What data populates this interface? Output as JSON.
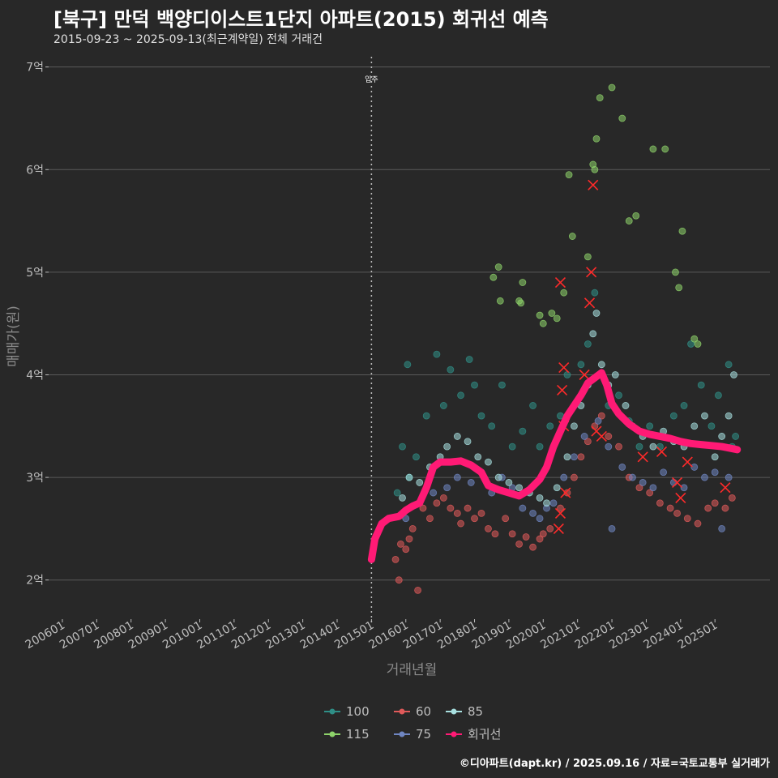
{
  "header": {
    "title": "[북구] 만덕 백양디이스트1단지 아파트(2015) 회귀선 예측",
    "subtitle": "2015-09-23 ~ 2025-09-13(최근계약일) 전체 거래건"
  },
  "caption": "©디아파트(dapt.kr) / 2025.09.16 / 자료=국토교통부 실거래가",
  "colors": {
    "background": "#282828",
    "grid": "#5a5a5a",
    "regression": "#ff1a75",
    "s100": "#2f8f87",
    "s115": "#8ed36a",
    "s60": "#e05a5a",
    "s75": "#6f86c2",
    "s85": "#a8e0e0"
  },
  "chart_data": {
    "type": "scatter",
    "title": "[북구] 만덕 백양디이스트1단지 아파트(2015) 회귀선 예측",
    "xlabel": "거래년월",
    "ylabel": "매매가(원)",
    "xlim": [
      2005.6,
      2026.6
    ],
    "ylim": [
      1.65,
      7.1
    ],
    "y_unit": "억",
    "y_ticks": [
      2,
      3,
      4,
      5,
      6,
      7
    ],
    "y_tick_labels": [
      "2억",
      "3억",
      "4억",
      "5억",
      "6억",
      "7억"
    ],
    "x_ticks": [
      2006,
      2007,
      2008,
      2009,
      2010,
      2011,
      2012,
      2013,
      2014,
      2015,
      2016,
      2017,
      2018,
      2019,
      2020,
      2021,
      2022,
      2023,
      2024,
      2025
    ],
    "x_tick_labels": [
      "200601",
      "200701",
      "200801",
      "200901",
      "201001",
      "201101",
      "201201",
      "201301",
      "201401",
      "201501",
      "201601",
      "201701",
      "201801",
      "201901",
      "202001",
      "202101",
      "202201",
      "202301",
      "202401",
      "202501"
    ],
    "move_in": {
      "x": 2015.0,
      "label": "입주"
    },
    "legend_position": "bottom",
    "legend": [
      "100",
      "60",
      "85",
      "115",
      "75",
      "회귀선"
    ],
    "series": [
      {
        "name": "100",
        "color_key": "s100",
        "points": [
          [
            2015.75,
            2.85
          ],
          [
            2015.9,
            3.3
          ],
          [
            2016.05,
            4.1
          ],
          [
            2016.1,
            3.0
          ],
          [
            2016.3,
            3.2
          ],
          [
            2016.6,
            3.6
          ],
          [
            2016.9,
            4.2
          ],
          [
            2017.1,
            3.7
          ],
          [
            2017.3,
            4.05
          ],
          [
            2017.6,
            3.8
          ],
          [
            2017.85,
            4.15
          ],
          [
            2018.0,
            3.9
          ],
          [
            2018.2,
            3.6
          ],
          [
            2018.5,
            3.5
          ],
          [
            2018.8,
            3.9
          ],
          [
            2019.1,
            3.3
          ],
          [
            2019.4,
            3.45
          ],
          [
            2019.7,
            3.7
          ],
          [
            2019.9,
            3.3
          ],
          [
            2020.2,
            3.5
          ],
          [
            2020.5,
            3.6
          ],
          [
            2020.7,
            4.0
          ],
          [
            2020.9,
            3.7
          ],
          [
            2021.1,
            4.1
          ],
          [
            2021.3,
            4.3
          ],
          [
            2021.5,
            4.8
          ],
          [
            2021.7,
            4.0
          ],
          [
            2021.9,
            3.7
          ],
          [
            2022.2,
            3.8
          ],
          [
            2022.5,
            3.55
          ],
          [
            2022.8,
            3.3
          ],
          [
            2023.1,
            3.5
          ],
          [
            2023.4,
            3.3
          ],
          [
            2023.8,
            3.6
          ],
          [
            2024.1,
            3.7
          ],
          [
            2024.3,
            4.3
          ],
          [
            2024.6,
            3.9
          ],
          [
            2024.9,
            3.5
          ],
          [
            2025.1,
            3.8
          ],
          [
            2025.4,
            4.1
          ],
          [
            2025.5,
            3.3
          ],
          [
            2025.6,
            3.4
          ]
        ]
      },
      {
        "name": "115",
        "color_key": "s115",
        "points": [
          [
            2018.55,
            4.95
          ],
          [
            2018.7,
            5.05
          ],
          [
            2018.75,
            4.72
          ],
          [
            2019.3,
            4.72
          ],
          [
            2019.35,
            4.7
          ],
          [
            2019.4,
            4.9
          ],
          [
            2019.9,
            4.58
          ],
          [
            2020.0,
            4.5
          ],
          [
            2020.25,
            4.6
          ],
          [
            2020.4,
            4.55
          ],
          [
            2020.6,
            4.8
          ],
          [
            2020.75,
            5.95
          ],
          [
            2020.85,
            5.35
          ],
          [
            2021.3,
            5.15
          ],
          [
            2021.45,
            6.05
          ],
          [
            2021.5,
            6.0
          ],
          [
            2021.55,
            6.3
          ],
          [
            2021.65,
            6.7
          ],
          [
            2022.0,
            6.8
          ],
          [
            2022.3,
            6.5
          ],
          [
            2022.5,
            5.5
          ],
          [
            2022.7,
            5.55
          ],
          [
            2023.2,
            6.2
          ],
          [
            2023.55,
            6.2
          ],
          [
            2023.85,
            5.0
          ],
          [
            2023.95,
            4.85
          ],
          [
            2024.05,
            5.4
          ],
          [
            2024.4,
            4.35
          ],
          [
            2024.5,
            4.3
          ]
        ]
      },
      {
        "name": "60",
        "color_key": "s60",
        "points": [
          [
            2015.7,
            2.2
          ],
          [
            2015.8,
            2.0
          ],
          [
            2015.85,
            2.35
          ],
          [
            2016.0,
            2.3
          ],
          [
            2016.1,
            2.4
          ],
          [
            2016.2,
            2.5
          ],
          [
            2016.35,
            1.9
          ],
          [
            2016.5,
            2.7
          ],
          [
            2016.7,
            2.6
          ],
          [
            2016.9,
            2.75
          ],
          [
            2017.1,
            2.8
          ],
          [
            2017.3,
            2.7
          ],
          [
            2017.5,
            2.65
          ],
          [
            2017.6,
            2.55
          ],
          [
            2017.8,
            2.7
          ],
          [
            2018.0,
            2.6
          ],
          [
            2018.2,
            2.65
          ],
          [
            2018.4,
            2.5
          ],
          [
            2018.6,
            2.45
          ],
          [
            2018.9,
            2.6
          ],
          [
            2019.1,
            2.45
          ],
          [
            2019.3,
            2.35
          ],
          [
            2019.5,
            2.42
          ],
          [
            2019.7,
            2.32
          ],
          [
            2019.9,
            2.4
          ],
          [
            2020.0,
            2.45
          ],
          [
            2020.2,
            2.5
          ],
          [
            2020.5,
            2.7
          ],
          [
            2020.7,
            2.85
          ],
          [
            2020.9,
            3.0
          ],
          [
            2021.1,
            3.2
          ],
          [
            2021.3,
            3.35
          ],
          [
            2021.5,
            3.5
          ],
          [
            2021.7,
            3.6
          ],
          [
            2021.9,
            3.4
          ],
          [
            2022.2,
            3.3
          ],
          [
            2022.5,
            3.0
          ],
          [
            2022.8,
            2.9
          ],
          [
            2023.1,
            2.85
          ],
          [
            2023.4,
            2.75
          ],
          [
            2023.7,
            2.7
          ],
          [
            2023.9,
            2.65
          ],
          [
            2024.2,
            2.6
          ],
          [
            2024.5,
            2.55
          ],
          [
            2024.8,
            2.7
          ],
          [
            2025.0,
            2.75
          ],
          [
            2025.3,
            2.7
          ],
          [
            2025.5,
            2.8
          ]
        ]
      },
      {
        "name": "75",
        "color_key": "s75",
        "points": [
          [
            2016.0,
            2.6
          ],
          [
            2016.4,
            2.75
          ],
          [
            2016.8,
            2.85
          ],
          [
            2017.2,
            2.9
          ],
          [
            2017.5,
            3.0
          ],
          [
            2017.9,
            2.95
          ],
          [
            2018.2,
            3.05
          ],
          [
            2018.5,
            2.85
          ],
          [
            2018.8,
            3.0
          ],
          [
            2019.1,
            2.9
          ],
          [
            2019.4,
            2.7
          ],
          [
            2019.7,
            2.65
          ],
          [
            2019.9,
            2.6
          ],
          [
            2020.1,
            2.7
          ],
          [
            2020.3,
            2.75
          ],
          [
            2020.6,
            3.0
          ],
          [
            2020.9,
            3.2
          ],
          [
            2021.2,
            3.4
          ],
          [
            2021.6,
            3.55
          ],
          [
            2021.9,
            3.3
          ],
          [
            2022.0,
            2.5
          ],
          [
            2022.3,
            3.1
          ],
          [
            2022.6,
            3.0
          ],
          [
            2022.9,
            2.95
          ],
          [
            2023.2,
            2.9
          ],
          [
            2023.5,
            3.05
          ],
          [
            2023.8,
            2.95
          ],
          [
            2024.1,
            2.9
          ],
          [
            2024.4,
            3.1
          ],
          [
            2024.7,
            3.0
          ],
          [
            2025.0,
            3.05
          ],
          [
            2025.2,
            2.5
          ],
          [
            2025.4,
            3.0
          ]
        ]
      },
      {
        "name": "85",
        "color_key": "s85",
        "points": [
          [
            2015.9,
            2.8
          ],
          [
            2016.1,
            3.0
          ],
          [
            2016.4,
            2.95
          ],
          [
            2016.7,
            3.1
          ],
          [
            2017.0,
            3.2
          ],
          [
            2017.2,
            3.3
          ],
          [
            2017.5,
            3.4
          ],
          [
            2017.8,
            3.35
          ],
          [
            2018.1,
            3.2
          ],
          [
            2018.4,
            3.15
          ],
          [
            2018.7,
            3.0
          ],
          [
            2019.0,
            2.95
          ],
          [
            2019.3,
            2.9
          ],
          [
            2019.6,
            2.85
          ],
          [
            2019.9,
            2.8
          ],
          [
            2020.1,
            2.75
          ],
          [
            2020.4,
            2.9
          ],
          [
            2020.7,
            3.2
          ],
          [
            2020.9,
            3.5
          ],
          [
            2021.1,
            3.7
          ],
          [
            2021.3,
            3.9
          ],
          [
            2021.45,
            4.4
          ],
          [
            2021.55,
            4.6
          ],
          [
            2021.7,
            4.1
          ],
          [
            2021.9,
            3.9
          ],
          [
            2022.1,
            4.0
          ],
          [
            2022.4,
            3.7
          ],
          [
            2022.6,
            3.5
          ],
          [
            2022.9,
            3.4
          ],
          [
            2023.2,
            3.3
          ],
          [
            2023.5,
            3.45
          ],
          [
            2023.8,
            3.35
          ],
          [
            2024.1,
            3.3
          ],
          [
            2024.4,
            3.5
          ],
          [
            2024.7,
            3.6
          ],
          [
            2025.0,
            3.2
          ],
          [
            2025.2,
            3.4
          ],
          [
            2025.4,
            3.6
          ],
          [
            2025.55,
            4.0
          ]
        ]
      },
      {
        "name": "회귀선",
        "color_key": "regression",
        "kind": "line",
        "points": [
          [
            2015.0,
            2.2
          ],
          [
            2015.1,
            2.4
          ],
          [
            2015.3,
            2.55
          ],
          [
            2015.5,
            2.6
          ],
          [
            2015.8,
            2.62
          ],
          [
            2016.0,
            2.68
          ],
          [
            2016.2,
            2.72
          ],
          [
            2016.4,
            2.75
          ],
          [
            2016.6,
            2.9
          ],
          [
            2016.8,
            3.1
          ],
          [
            2017.0,
            3.15
          ],
          [
            2017.3,
            3.15
          ],
          [
            2017.6,
            3.16
          ],
          [
            2017.9,
            3.12
          ],
          [
            2018.2,
            3.05
          ],
          [
            2018.4,
            2.92
          ],
          [
            2018.7,
            2.88
          ],
          [
            2019.0,
            2.85
          ],
          [
            2019.3,
            2.82
          ],
          [
            2019.6,
            2.88
          ],
          [
            2019.9,
            2.98
          ],
          [
            2020.1,
            3.1
          ],
          [
            2020.3,
            3.3
          ],
          [
            2020.5,
            3.45
          ],
          [
            2020.7,
            3.6
          ],
          [
            2020.9,
            3.7
          ],
          [
            2021.1,
            3.8
          ],
          [
            2021.3,
            3.92
          ],
          [
            2021.5,
            3.97
          ],
          [
            2021.7,
            4.02
          ],
          [
            2021.85,
            3.9
          ],
          [
            2022.0,
            3.72
          ],
          [
            2022.2,
            3.62
          ],
          [
            2022.5,
            3.52
          ],
          [
            2022.8,
            3.45
          ],
          [
            2023.1,
            3.42
          ],
          [
            2023.4,
            3.4
          ],
          [
            2023.7,
            3.38
          ],
          [
            2024.0,
            3.35
          ],
          [
            2024.3,
            3.33
          ],
          [
            2024.6,
            3.32
          ],
          [
            2024.9,
            3.31
          ],
          [
            2025.2,
            3.3
          ],
          [
            2025.5,
            3.28
          ],
          [
            2025.65,
            3.27
          ]
        ]
      }
    ],
    "deal_markers": {
      "label": "x",
      "points": [
        [
          2020.5,
          4.9
        ],
        [
          2020.6,
          4.07
        ],
        [
          2020.55,
          3.85
        ],
        [
          2020.6,
          3.5
        ],
        [
          2020.65,
          2.85
        ],
        [
          2020.45,
          2.5
        ],
        [
          2020.5,
          2.65
        ],
        [
          2021.45,
          5.85
        ],
        [
          2021.4,
          5.0
        ],
        [
          2021.35,
          4.7
        ],
        [
          2021.55,
          3.45
        ],
        [
          2021.7,
          3.4
        ],
        [
          2021.2,
          4.0
        ],
        [
          2022.9,
          3.2
        ],
        [
          2023.45,
          3.25
        ],
        [
          2023.9,
          2.95
        ],
        [
          2024.2,
          3.15
        ],
        [
          2025.3,
          2.9
        ],
        [
          2024.0,
          2.8
        ]
      ]
    }
  }
}
